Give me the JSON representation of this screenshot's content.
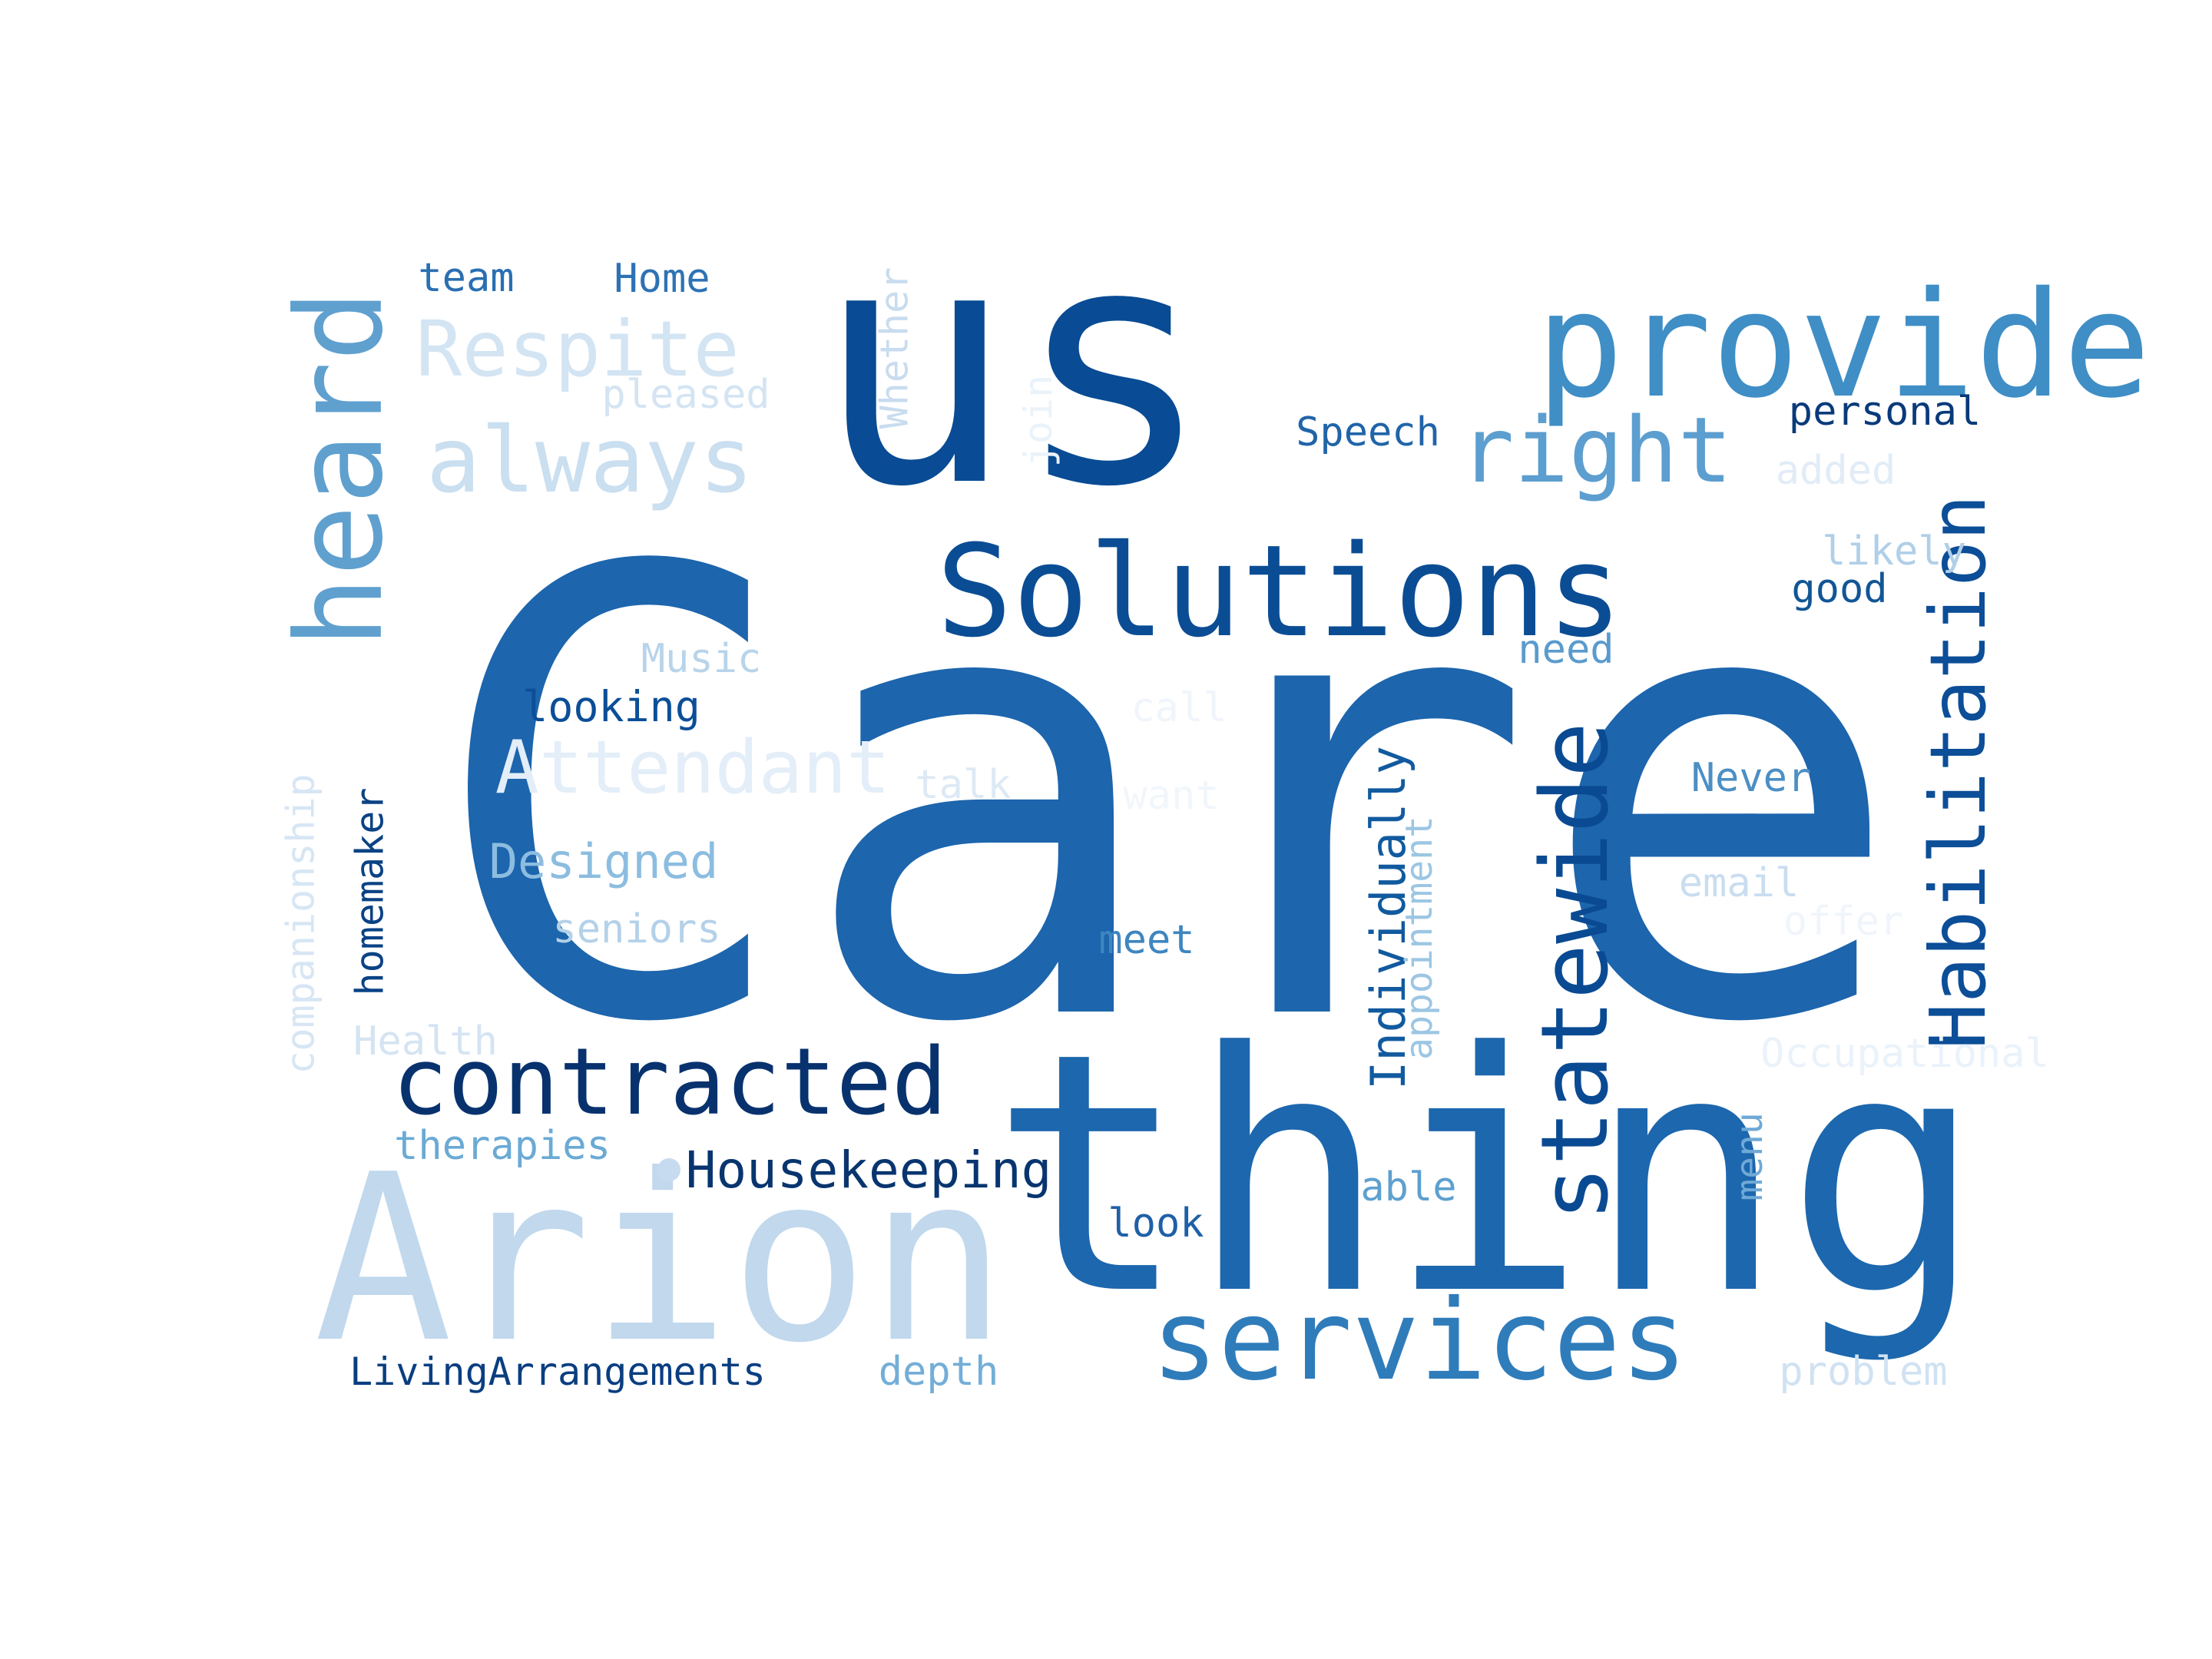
{
  "words": [
    {
      "text": "Care",
      "color": "#1d65ad"
    },
    {
      "text": "thing",
      "color": "#1c67ae"
    },
    {
      "text": "us",
      "color": "#094b94"
    },
    {
      "text": "Arion",
      "color": "#c1d8ed"
    },
    {
      "text": "provide",
      "color": "#3f8ec6"
    },
    {
      "text": "Solutions",
      "color": "#0b4d94"
    },
    {
      "text": "services",
      "color": "#2f7cbb"
    },
    {
      "text": "heard",
      "color": "#5fa0cf"
    },
    {
      "text": "statewide",
      "color": "#0a4a93"
    },
    {
      "text": "contracted",
      "color": "#08326e"
    },
    {
      "text": "right",
      "color": "#5c9ecf"
    },
    {
      "text": "Habilitation",
      "color": "#0c4e97"
    },
    {
      "text": "always",
      "color": "#cadff0"
    },
    {
      "text": "Respite",
      "color": "#d3e4f3"
    },
    {
      "text": "Attendant",
      "color": "#e3eef8"
    },
    {
      "text": "Housekeeping",
      "color": "#08356f"
    },
    {
      "text": "Individually",
      "color": "#115a9f"
    },
    {
      "text": "Designed",
      "color": "#8cbde0"
    },
    {
      "text": "looking",
      "color": "#0c4e97"
    },
    {
      "text": "Speech",
      "color": "#2064a8"
    },
    {
      "text": "personal",
      "color": "#093a7a"
    },
    {
      "text": "team",
      "color": "#2a6fb1"
    },
    {
      "text": "Home",
      "color": "#2e72b4"
    },
    {
      "text": "pleased",
      "color": "#d4e4f3"
    },
    {
      "text": "Whether",
      "color": "#c8dcef"
    },
    {
      "text": "join",
      "color": "#eaf2fa"
    },
    {
      "text": "added",
      "color": "#e1ecf7"
    },
    {
      "text": "likely",
      "color": "#b0cfe8"
    },
    {
      "text": "good",
      "color": "#115696"
    },
    {
      "text": "need",
      "color": "#5a9bce"
    },
    {
      "text": "Music",
      "color": "#b8d4ea"
    },
    {
      "text": "call",
      "color": "#f0f5fb"
    },
    {
      "text": "talk",
      "color": "#dde9f5"
    },
    {
      "text": "want",
      "color": "#f1f6fb"
    },
    {
      "text": "Never",
      "color": "#4b8fc5"
    },
    {
      "text": "email",
      "color": "#c9ddf0"
    },
    {
      "text": "offer",
      "color": "#f0f5fb"
    },
    {
      "text": "meet",
      "color": "#3e86c0"
    },
    {
      "text": "seniors",
      "color": "#b4d1e9"
    },
    {
      "text": "homemaker",
      "color": "#0a4285"
    },
    {
      "text": "companionship",
      "color": "#d7e6f4"
    },
    {
      "text": "Health",
      "color": "#d4e4f2"
    },
    {
      "text": "appointment",
      "color": "#9cc6e3"
    },
    {
      "text": "Occupational",
      "color": "#eaf2fa"
    },
    {
      "text": "therapies",
      "color": "#6aaad5"
    },
    {
      "text": "able",
      "color": "#5ea0cf"
    },
    {
      "text": "menu",
      "color": "#6fa9d6"
    },
    {
      "text": "look",
      "color": "#1f60a7"
    },
    {
      "text": "LivingArrangements",
      "color": "#0a3e80"
    },
    {
      "text": "depth",
      "color": "#73aed8"
    },
    {
      "text": "problem",
      "color": "#d0e2f2"
    }
  ],
  "dot": {
    "color": "#c6dbef"
  }
}
